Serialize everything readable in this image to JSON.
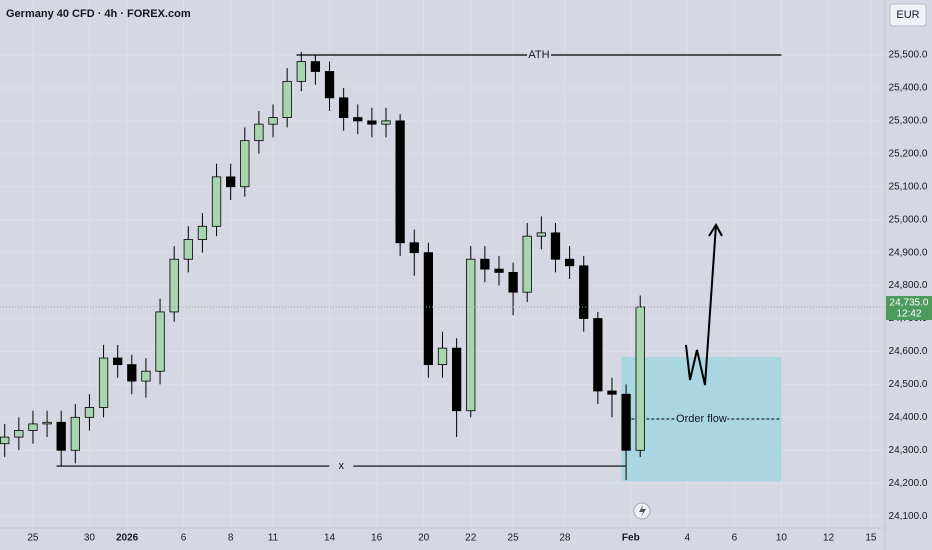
{
  "chart_data": {
    "type": "candlestick",
    "title": "Germany 40 CFD · 4h · FOREX.com",
    "currency": "EUR",
    "countdown": "12:42",
    "last_price": {
      "value": 24735,
      "label": "24,735.0"
    },
    "up_color": "#a8d5b0",
    "down_color": "#000000",
    "x": [
      1,
      4,
      7,
      10,
      13,
      16,
      19,
      22,
      25,
      28,
      31,
      34,
      37,
      40,
      43,
      46,
      49,
      52,
      55,
      58,
      61,
      64,
      67,
      70,
      73,
      76,
      79,
      82,
      85,
      88,
      91,
      94,
      97,
      100,
      103,
      106,
      109,
      112,
      115,
      118,
      121,
      124,
      127,
      130,
      133,
      136
    ],
    "open": [
      24320,
      24340,
      24360,
      24380,
      24385,
      24300,
      24400,
      24430,
      24580,
      24560,
      24510,
      24540,
      24720,
      24880,
      24940,
      24980,
      25130,
      25100,
      25240,
      25290,
      25310,
      25420,
      25480,
      25450,
      25370,
      25310,
      25300,
      25290,
      25300,
      24930,
      24900,
      24560,
      24610,
      24420,
      24880,
      24850,
      24840,
      24780,
      24950,
      24960,
      24880,
      24860,
      24700,
      24480,
      24470,
      24300
    ],
    "high": [
      24380,
      24400,
      24420,
      24420,
      24420,
      24440,
      24470,
      24620,
      24620,
      24590,
      24580,
      24760,
      24920,
      24980,
      25020,
      25170,
      25170,
      25280,
      25330,
      25350,
      25460,
      25510,
      25500,
      25480,
      25400,
      25350,
      25340,
      25340,
      25320,
      24970,
      24930,
      24660,
      24640,
      24920,
      24920,
      24890,
      24870,
      24990,
      25010,
      24990,
      24920,
      24890,
      24720,
      24520,
      24500,
      24770
    ],
    "low": [
      24280,
      24300,
      24320,
      24340,
      24250,
      24260,
      24360,
      24400,
      24520,
      24470,
      24460,
      24500,
      24690,
      24840,
      24900,
      24950,
      25060,
      25070,
      25200,
      25250,
      25280,
      25390,
      25410,
      25330,
      25270,
      25260,
      25250,
      25250,
      24890,
      24830,
      24520,
      24520,
      24340,
      24400,
      24810,
      24800,
      24710,
      24750,
      24910,
      24840,
      24820,
      24660,
      24440,
      24400,
      24210,
      24280
    ],
    "close": [
      24340,
      24360,
      24380,
      24385,
      24300,
      24400,
      24430,
      24580,
      24560,
      24510,
      24540,
      24720,
      24880,
      24940,
      24980,
      25130,
      25100,
      25240,
      25290,
      25310,
      25420,
      25480,
      25450,
      25370,
      25310,
      25300,
      25290,
      25300,
      24930,
      24900,
      24560,
      24610,
      24420,
      24880,
      24850,
      24840,
      24780,
      24950,
      24960,
      24880,
      24860,
      24700,
      24480,
      24470,
      24300,
      24735
    ],
    "xlim": [
      0,
      188
    ],
    "xticks": [
      {
        "value": 7,
        "label": "25"
      },
      {
        "value": 19,
        "label": "30"
      },
      {
        "value": 27,
        "label": "2026"
      },
      {
        "value": 39,
        "label": "6"
      },
      {
        "value": 49,
        "label": "8"
      },
      {
        "value": 58,
        "label": "11"
      },
      {
        "value": 70,
        "label": "14"
      },
      {
        "value": 80,
        "label": "16"
      },
      {
        "value": 90,
        "label": "20"
      },
      {
        "value": 100,
        "label": "22"
      },
      {
        "value": 109,
        "label": "25"
      },
      {
        "value": 120,
        "label": "28"
      },
      {
        "value": 134,
        "label": "Feb"
      },
      {
        "value": 146,
        "label": "4"
      },
      {
        "value": 156,
        "label": "6"
      },
      {
        "value": 166,
        "label": "10"
      },
      {
        "value": 176,
        "label": "12"
      },
      {
        "value": 185,
        "label": "15"
      }
    ],
    "ylim": [
      24064,
      25667
    ],
    "yticks": [
      {
        "value": 24100,
        "label": "24,100.0"
      },
      {
        "value": 24200,
        "label": "24,200.0"
      },
      {
        "value": 24300,
        "label": "24,300.0"
      },
      {
        "value": 24400,
        "label": "24,400.0"
      },
      {
        "value": 24500,
        "label": "24,500.0"
      },
      {
        "value": 24600,
        "label": "24,600.0"
      },
      {
        "value": 24700,
        "label": "24,700.0"
      },
      {
        "value": 24800,
        "label": "24,800.0"
      },
      {
        "value": 24900,
        "label": "24,900.0"
      },
      {
        "value": 25000,
        "label": "25,000.0"
      },
      {
        "value": 25100,
        "label": "25,100.0"
      },
      {
        "value": 25200,
        "label": "25,200.0"
      },
      {
        "value": 25300,
        "label": "25,300.0"
      },
      {
        "value": 25400,
        "label": "25,400.0"
      },
      {
        "value": 25500,
        "label": "25,500.0"
      }
    ],
    "grid": true,
    "annotations": {
      "ath": {
        "label": "ATH",
        "value": 25500,
        "x": [
          63,
          166
        ]
      },
      "support": {
        "label": "x",
        "value": 24252,
        "x": [
          12,
          133
        ]
      },
      "zone": {
        "label": "Order flow",
        "low": 24206,
        "high": 24583,
        "mid": 24395,
        "x": [
          132,
          166
        ],
        "color": "#a9d6e0"
      }
    }
  }
}
